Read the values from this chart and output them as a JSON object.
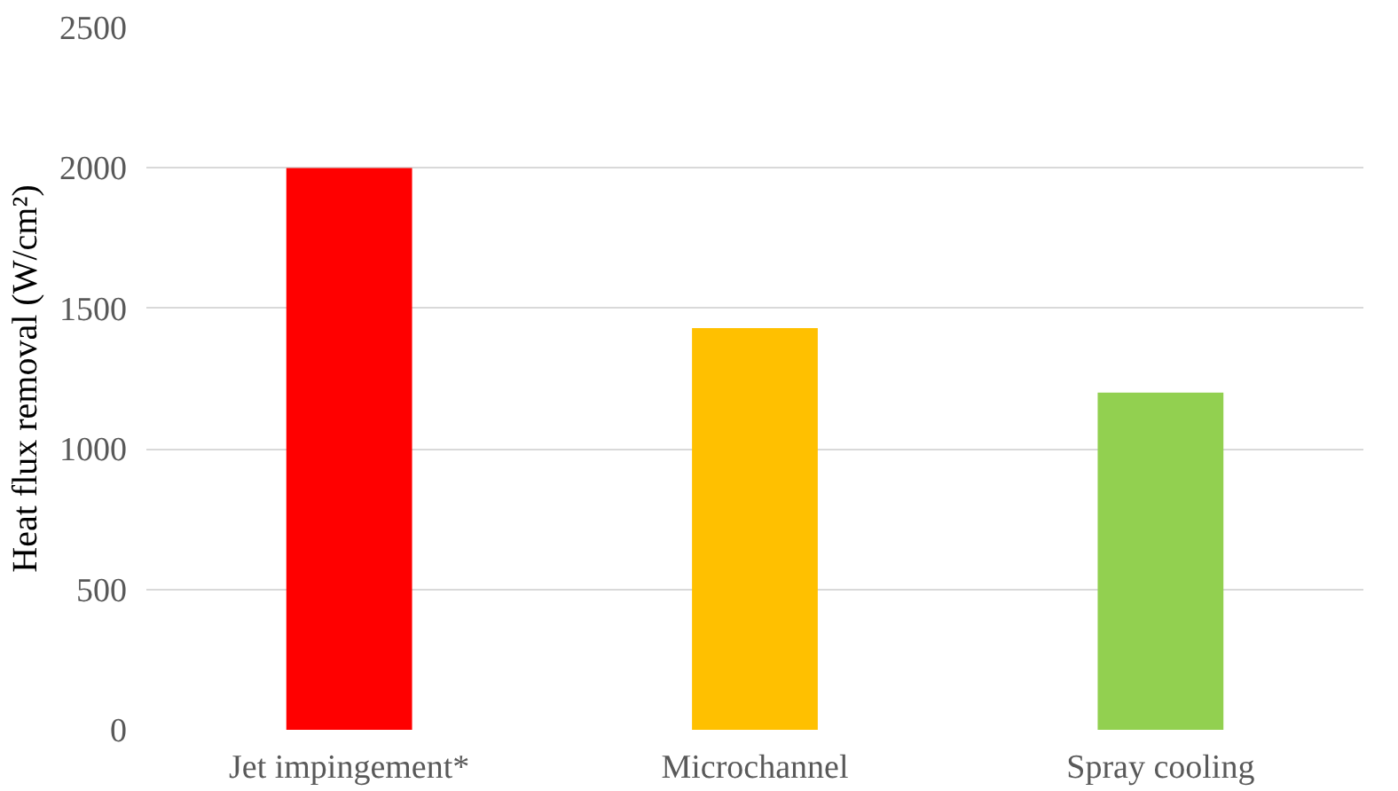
{
  "chart_data": {
    "type": "bar",
    "ylabel": "Heat flux removal (W/cm²)",
    "categories": [
      "Jet impingement*",
      "Microchannel",
      "Spray cooling"
    ],
    "values": [
      2000,
      1430,
      1200
    ],
    "colors": [
      "#ff0000",
      "#ffc000",
      "#92d050"
    ],
    "ylim": [
      0,
      2500
    ],
    "yticks": [
      0,
      500,
      1000,
      1500,
      2000,
      2500
    ],
    "grid": "y"
  }
}
